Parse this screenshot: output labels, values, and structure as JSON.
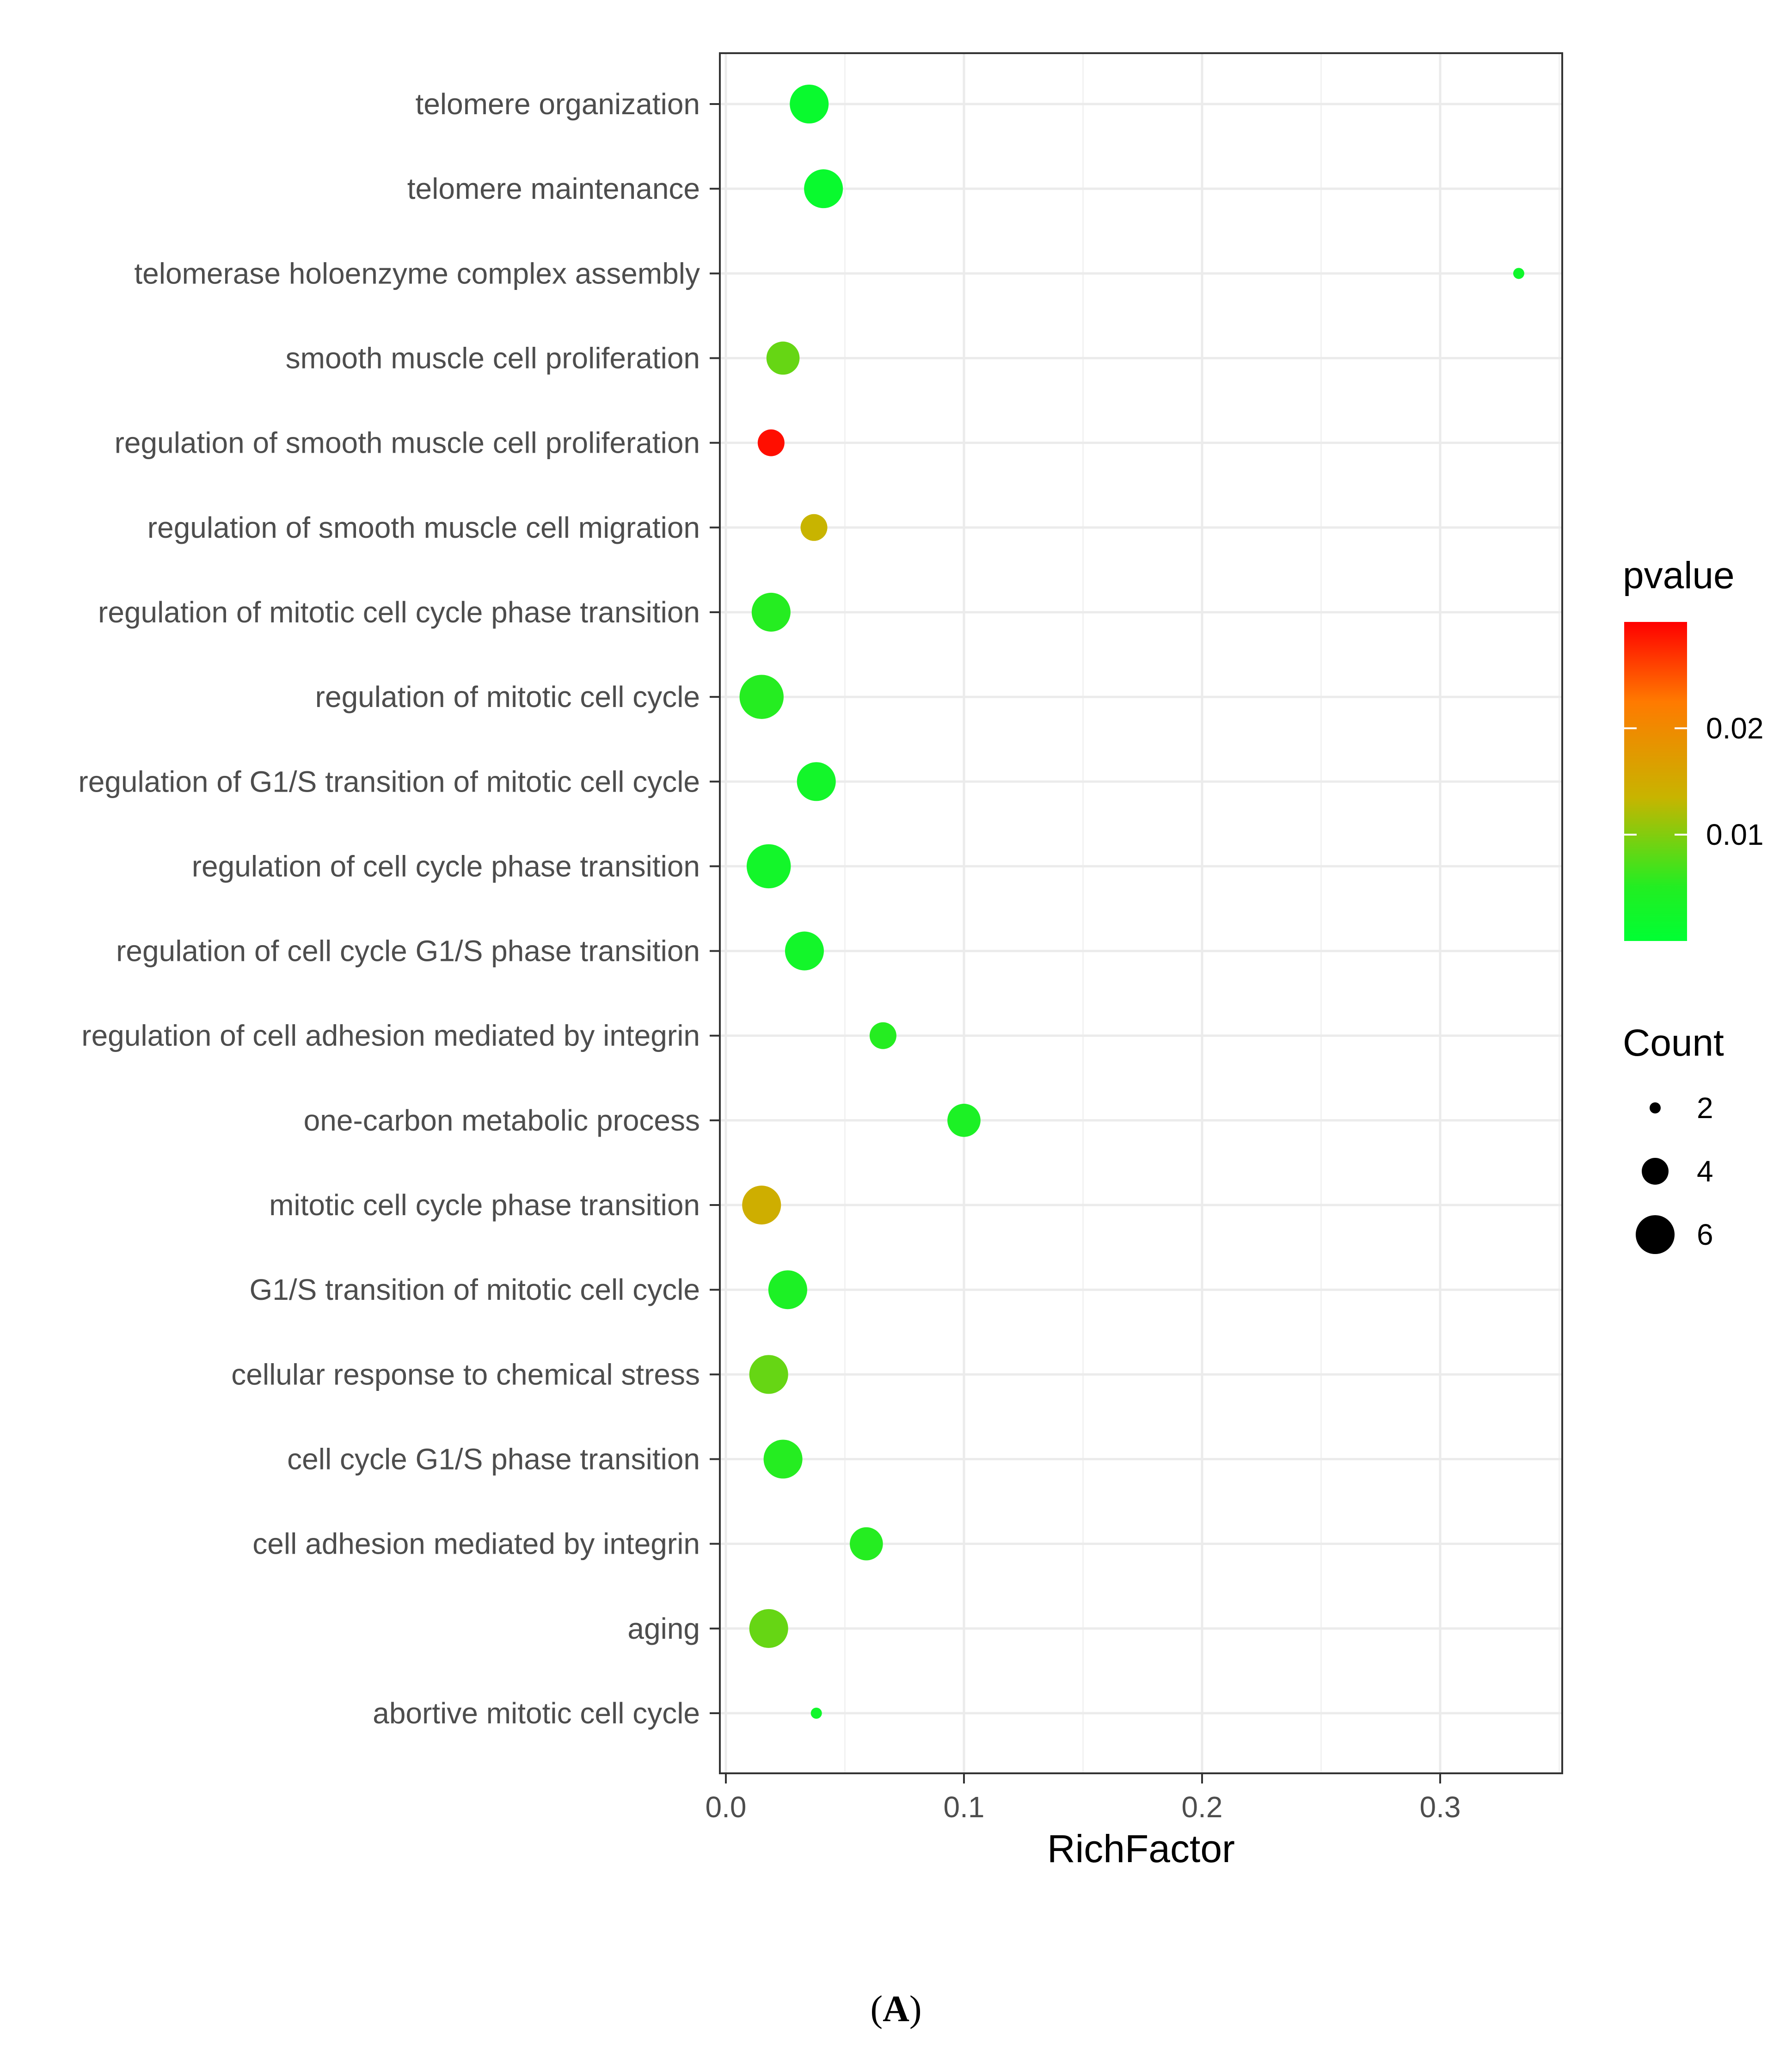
{
  "chart_data": {
    "type": "scatter",
    "xlabel": "RichFactor",
    "xlim": [
      0,
      0.35
    ],
    "xticks": [
      0,
      0.1,
      0.2,
      0.3
    ],
    "xtick_labels": [
      "0.0",
      "0.1",
      "0.2",
      "0.3"
    ],
    "categories": [
      "telomere organization",
      "telomere maintenance",
      "telomerase holoenzyme complex assembly",
      "smooth muscle cell proliferation",
      "regulation of smooth muscle cell proliferation",
      "regulation of smooth muscle cell migration",
      "regulation of mitotic cell cycle phase transition",
      "regulation of mitotic cell cycle",
      "regulation of G1/S transition of mitotic cell cycle",
      "regulation of cell cycle phase transition",
      "regulation of cell cycle G1/S phase transition",
      "regulation of cell adhesion mediated by integrin",
      "one-carbon metabolic process",
      "mitotic cell cycle phase transition",
      "G1/S transition of mitotic cell cycle",
      "cellular response to chemical stress",
      "cell cycle G1/S phase transition",
      "cell adhesion mediated by integrin",
      "aging",
      "abortive mitotic cell cycle"
    ],
    "points": [
      {
        "term": "telomere organization",
        "rich_factor": 0.035,
        "count": 6,
        "pvalue": 0.0005
      },
      {
        "term": "telomere maintenance",
        "rich_factor": 0.041,
        "count": 6,
        "pvalue": 0.0005
      },
      {
        "term": "telomerase holoenzyme complex assembly",
        "rich_factor": 0.333,
        "count": 2,
        "pvalue": 0.0008
      },
      {
        "term": "smooth muscle cell proliferation",
        "rich_factor": 0.024,
        "count": 5,
        "pvalue": 0.006
      },
      {
        "term": "regulation of smooth muscle cell proliferation",
        "rich_factor": 0.019,
        "count": 4,
        "pvalue": 0.029
      },
      {
        "term": "regulation of smooth muscle cell migration",
        "rich_factor": 0.037,
        "count": 4,
        "pvalue": 0.012
      },
      {
        "term": "regulation of mitotic cell cycle phase transition",
        "rich_factor": 0.019,
        "count": 6,
        "pvalue": 0.002
      },
      {
        "term": "regulation of mitotic cell cycle",
        "rich_factor": 0.015,
        "count": 7,
        "pvalue": 0.002
      },
      {
        "term": "regulation of G1/S transition of mitotic cell cycle",
        "rich_factor": 0.038,
        "count": 6,
        "pvalue": 0.001
      },
      {
        "term": "regulation of cell cycle phase transition",
        "rich_factor": 0.018,
        "count": 7,
        "pvalue": 0.001
      },
      {
        "term": "regulation of cell cycle G1/S phase transition",
        "rich_factor": 0.033,
        "count": 6,
        "pvalue": 0.001
      },
      {
        "term": "regulation of cell adhesion mediated by integrin",
        "rich_factor": 0.066,
        "count": 4,
        "pvalue": 0.002
      },
      {
        "term": "one-carbon metabolic process",
        "rich_factor": 0.1,
        "count": 5,
        "pvalue": 0.0015
      },
      {
        "term": "mitotic cell cycle phase transition",
        "rich_factor": 0.015,
        "count": 6,
        "pvalue": 0.013
      },
      {
        "term": "G1/S transition of mitotic cell cycle",
        "rich_factor": 0.026,
        "count": 6,
        "pvalue": 0.0015
      },
      {
        "term": "cellular response to chemical stress",
        "rich_factor": 0.018,
        "count": 6,
        "pvalue": 0.006
      },
      {
        "term": "cell cycle G1/S phase transition",
        "rich_factor": 0.024,
        "count": 6,
        "pvalue": 0.002
      },
      {
        "term": "cell adhesion mediated by integrin",
        "rich_factor": 0.059,
        "count": 5,
        "pvalue": 0.002
      },
      {
        "term": "aging",
        "rich_factor": 0.018,
        "count": 6,
        "pvalue": 0.006
      },
      {
        "term": "abortive mitotic cell cycle",
        "rich_factor": 0.038,
        "count": 2,
        "pvalue": 0.0009
      }
    ],
    "color_legend": {
      "title": "pvalue",
      "domain": [
        0,
        0.03
      ],
      "ticks": [
        0.01,
        0.02
      ],
      "tick_labels": [
        "0.01",
        "0.02"
      ],
      "colors": {
        "low": "#00ff33",
        "mid": "#c8b400",
        "high": "#ff0000"
      }
    },
    "size_legend": {
      "title": "Count",
      "values": [
        2,
        4,
        6
      ],
      "labels": [
        "2",
        "4",
        "6"
      ]
    },
    "grid": true,
    "legend_position": "right"
  },
  "caption": {
    "label": "A"
  }
}
